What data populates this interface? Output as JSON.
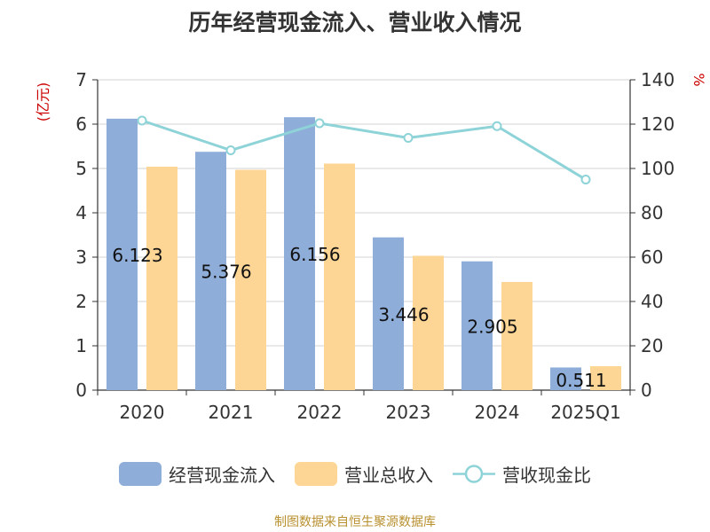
{
  "chart_data": {
    "type": "bar",
    "title": "历年经营现金流入、营业收入情况",
    "categories": [
      "2020",
      "2021",
      "2022",
      "2023",
      "2024",
      "2025Q1"
    ],
    "series": [
      {
        "name": "经营现金流入",
        "type": "bar",
        "axis": "left",
        "color": "#8eadd9",
        "values": [
          6.123,
          5.376,
          6.156,
          3.446,
          2.905,
          0.511
        ],
        "data_labels": [
          "6.123",
          "5.376",
          "6.156",
          "3.446",
          "2.905",
          "0.511"
        ]
      },
      {
        "name": "营业总收入",
        "type": "bar",
        "axis": "left",
        "color": "#fdd696",
        "values": [
          5.04,
          4.97,
          5.11,
          3.03,
          2.44,
          0.54
        ]
      },
      {
        "name": "营收现金比",
        "type": "line",
        "axis": "right",
        "color": "#8dd3d8",
        "values": [
          121.6,
          108.2,
          120.4,
          113.8,
          119.1,
          95.0
        ]
      }
    ],
    "y_left": {
      "label": "(亿元)",
      "label_color": "#cc0000",
      "range": [
        0,
        7
      ],
      "ticks": [
        0,
        1,
        2,
        3,
        4,
        5,
        6,
        7
      ]
    },
    "y_right": {
      "label": "%",
      "label_color": "#cc0000",
      "range": [
        0,
        140
      ],
      "ticks": [
        0,
        20,
        40,
        60,
        80,
        100,
        120,
        140
      ]
    },
    "grid": true,
    "legend_position": "bottom"
  },
  "source_text": "制图数据来自恒生聚源数据库"
}
